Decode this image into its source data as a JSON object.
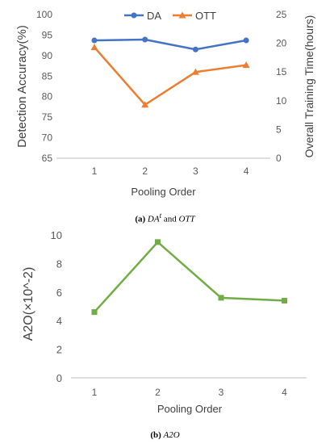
{
  "chart_data": [
    {
      "type": "line",
      "x_categories": [
        "1",
        "2",
        "3",
        "4"
      ],
      "xlabel": "Pooling Order",
      "ylabel": "Detection Accuracy(%)",
      "y2label": "Overall Training Time(hours)",
      "ylim": [
        65,
        100
      ],
      "y_ticks": [
        "65",
        "70",
        "75",
        "80",
        "85",
        "90",
        "95",
        "100"
      ],
      "y2lim": [
        0,
        25
      ],
      "y2_ticks": [
        "0",
        "5",
        "10",
        "15",
        "20",
        "25"
      ],
      "legend_position": "top",
      "series": [
        {
          "name": "DA",
          "axis": "left",
          "color": "#4472C4",
          "marker": "circle",
          "values": [
            93.7,
            93.9,
            91.5,
            93.7
          ]
        },
        {
          "name": "OTT",
          "axis": "right",
          "color": "#ED7D31",
          "marker": "triangle",
          "values": [
            19.3,
            9.3,
            15.0,
            16.2
          ]
        }
      ],
      "grid": false
    },
    {
      "type": "line",
      "x_categories": [
        "1",
        "2",
        "3",
        "4"
      ],
      "xlabel": "Pooling Order",
      "ylabel": "A2O(×10^-2)",
      "ylim": [
        0,
        10
      ],
      "y_ticks": [
        "0",
        "2",
        "4",
        "6",
        "8",
        "10"
      ],
      "series": [
        {
          "color": "#70AD47",
          "marker": "square",
          "values": [
            4.6,
            9.5,
            5.6,
            5.4
          ]
        }
      ],
      "grid": false
    }
  ],
  "captions": {
    "a": {
      "label": "(a)",
      "text_1": "DA",
      "sup": "t",
      "text_2": " and ",
      "text_3": "OTT"
    },
    "b": {
      "label": "(b)",
      "text_1": "A2O"
    }
  }
}
